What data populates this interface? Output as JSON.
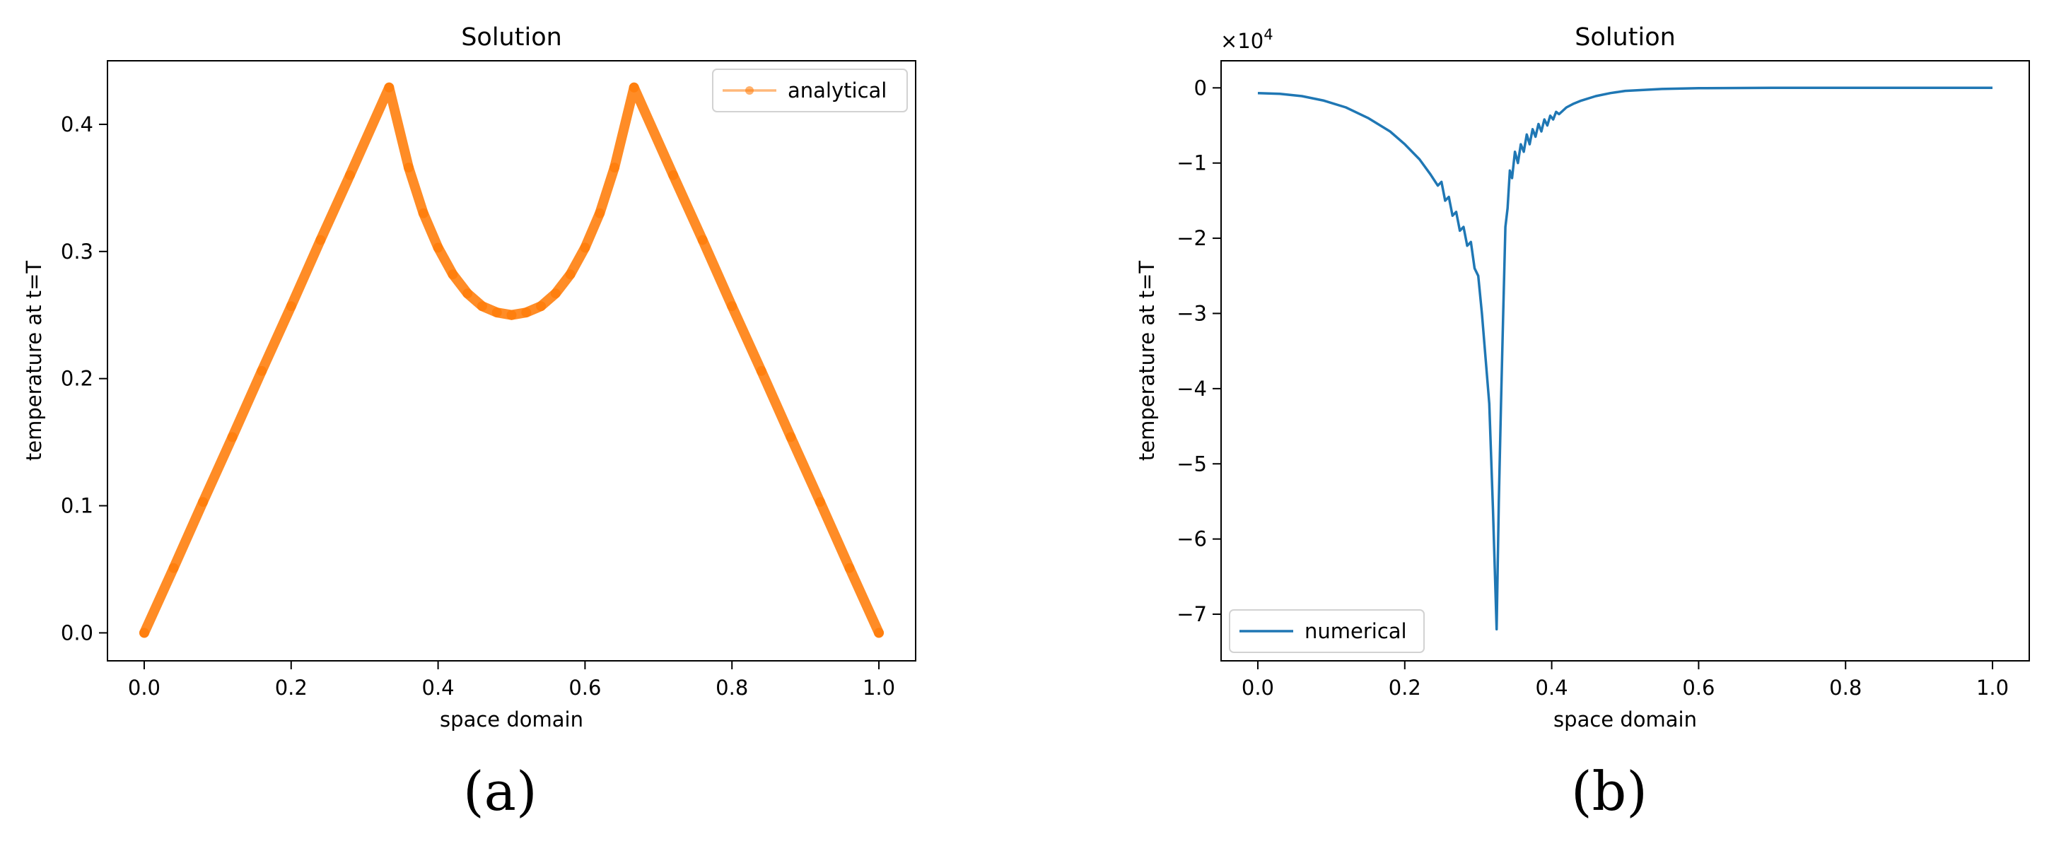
{
  "chart_data": [
    {
      "type": "line",
      "title": "Solution",
      "xlabel": "space domain",
      "ylabel": "temperature at t=T",
      "xlim": [
        -0.05,
        1.05
      ],
      "ylim": [
        -0.022,
        0.45
      ],
      "xticks": [
        0.0,
        0.2,
        0.4,
        0.6,
        0.8,
        1.0
      ],
      "xtick_labels": [
        "0.0",
        "0.2",
        "0.4",
        "0.6",
        "0.8",
        "1.0"
      ],
      "yticks": [
        0.0,
        0.1,
        0.2,
        0.3,
        0.4
      ],
      "ytick_labels": [
        "0.0",
        "0.1",
        "0.2",
        "0.3",
        "0.4"
      ],
      "grid": false,
      "legend_position": "upper-right",
      "series": [
        {
          "name": "analytical",
          "color": "#ff7f0e",
          "marker": "circle",
          "x": [
            0.0,
            0.04,
            0.08,
            0.12,
            0.16,
            0.2,
            0.24,
            0.28,
            0.3333,
            0.36,
            0.38,
            0.4,
            0.42,
            0.44,
            0.46,
            0.48,
            0.5,
            0.52,
            0.54,
            0.56,
            0.58,
            0.6,
            0.62,
            0.64,
            0.6667,
            0.72,
            0.76,
            0.8,
            0.84,
            0.88,
            0.92,
            0.96,
            1.0
          ],
          "y": [
            0.0,
            0.051,
            0.103,
            0.154,
            0.206,
            0.257,
            0.309,
            0.36,
            0.429,
            0.366,
            0.33,
            0.303,
            0.282,
            0.267,
            0.257,
            0.252,
            0.25,
            0.252,
            0.257,
            0.267,
            0.282,
            0.303,
            0.33,
            0.366,
            0.429,
            0.36,
            0.309,
            0.257,
            0.206,
            0.154,
            0.103,
            0.051,
            0.0
          ]
        }
      ],
      "panel_label": "(a)"
    },
    {
      "type": "line",
      "title": "Solution",
      "xlabel": "space domain",
      "ylabel": "temperature at t=T",
      "y_scale_label": "×10",
      "y_scale_exponent": "4",
      "xlim": [
        -0.05,
        1.05
      ],
      "ylim": [
        -7.62,
        0.36
      ],
      "xticks": [
        0.0,
        0.2,
        0.4,
        0.6,
        0.8,
        1.0
      ],
      "xtick_labels": [
        "0.0",
        "0.2",
        "0.4",
        "0.6",
        "0.8",
        "1.0"
      ],
      "yticks": [
        0,
        -1,
        -2,
        -3,
        -4,
        -5,
        -6,
        -7
      ],
      "ytick_labels": [
        "0",
        "−1",
        "−2",
        "−3",
        "−4",
        "−5",
        "−6",
        "−7"
      ],
      "grid": false,
      "legend_position": "lower-left",
      "series": [
        {
          "name": "numerical",
          "color": "#1f77b4",
          "x": [
            0.0,
            0.03,
            0.06,
            0.09,
            0.12,
            0.15,
            0.18,
            0.2,
            0.22,
            0.235,
            0.245,
            0.25,
            0.255,
            0.26,
            0.265,
            0.27,
            0.275,
            0.28,
            0.285,
            0.29,
            0.295,
            0.3,
            0.305,
            0.31,
            0.315,
            0.32,
            0.325,
            0.328,
            0.331,
            0.334,
            0.337,
            0.34,
            0.343,
            0.346,
            0.35,
            0.354,
            0.358,
            0.362,
            0.366,
            0.37,
            0.374,
            0.378,
            0.382,
            0.386,
            0.39,
            0.394,
            0.398,
            0.402,
            0.406,
            0.41,
            0.42,
            0.43,
            0.44,
            0.46,
            0.48,
            0.5,
            0.55,
            0.6,
            0.7,
            0.8,
            0.9,
            1.0
          ],
          "y": [
            -0.07,
            -0.08,
            -0.11,
            -0.17,
            -0.26,
            -0.4,
            -0.58,
            -0.75,
            -0.95,
            -1.15,
            -1.3,
            -1.25,
            -1.5,
            -1.45,
            -1.7,
            -1.65,
            -1.9,
            -1.85,
            -2.1,
            -2.05,
            -2.4,
            -2.5,
            -3.0,
            -3.6,
            -4.2,
            -5.6,
            -7.2,
            -5.5,
            -4.2,
            -3.0,
            -1.85,
            -1.6,
            -1.1,
            -1.2,
            -0.85,
            -1.0,
            -0.75,
            -0.85,
            -0.62,
            -0.75,
            -0.55,
            -0.65,
            -0.48,
            -0.58,
            -0.42,
            -0.5,
            -0.37,
            -0.42,
            -0.32,
            -0.35,
            -0.26,
            -0.21,
            -0.17,
            -0.11,
            -0.07,
            -0.04,
            -0.015,
            -0.005,
            0.0,
            0.0,
            0.0,
            0.0
          ]
        }
      ],
      "panel_label": "(b)"
    }
  ]
}
